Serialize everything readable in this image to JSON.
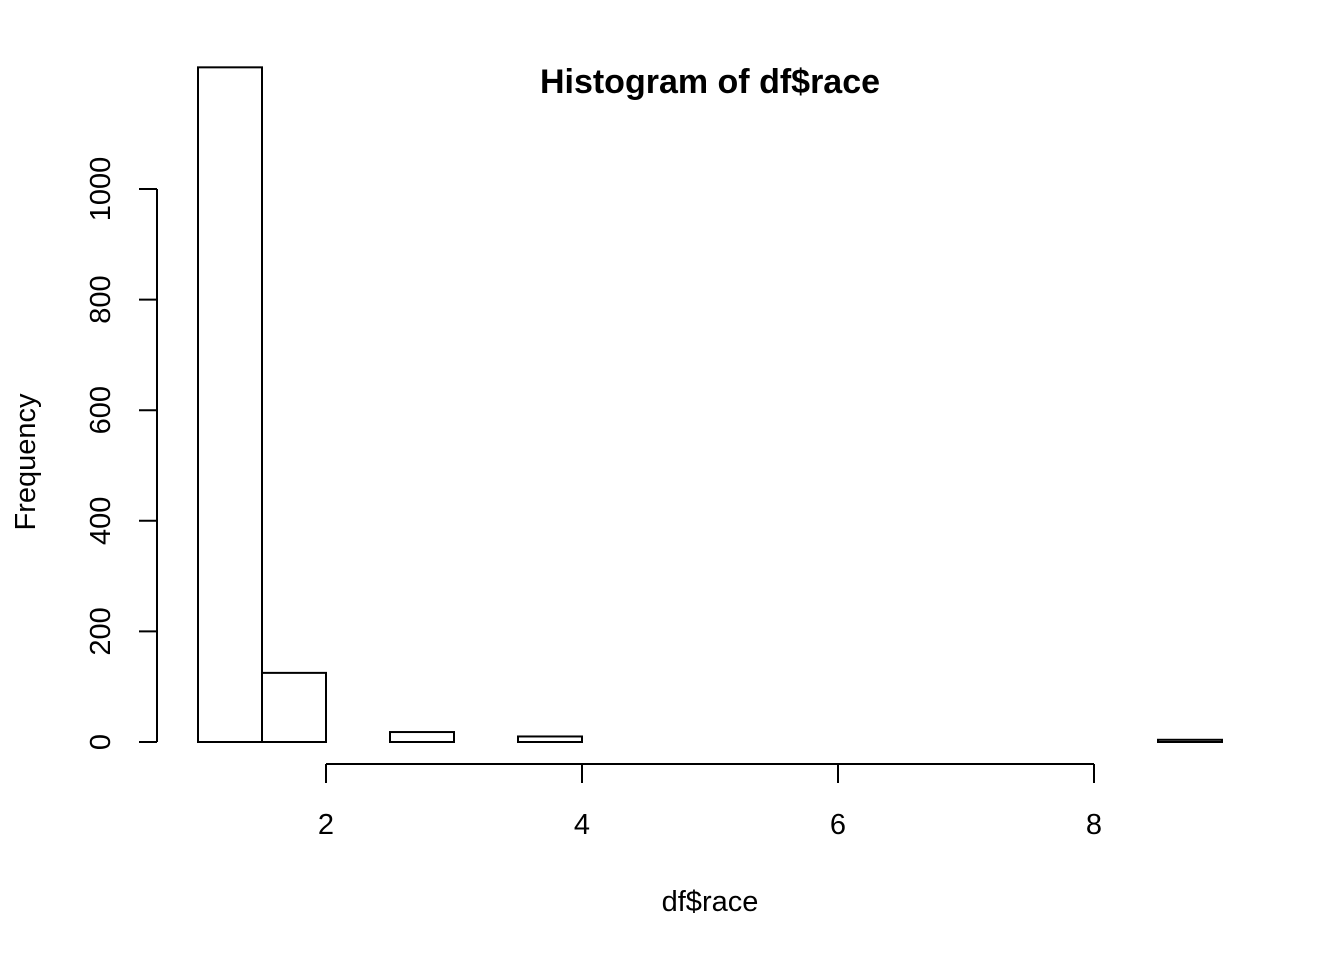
{
  "chart_data": {
    "type": "bar",
    "title": "Histogram of df$race",
    "xlabel": "df$race",
    "ylabel": "Frequency",
    "xlim": [
      1,
      9
    ],
    "ylim": [
      0,
      1200
    ],
    "x_ticks": [
      2,
      4,
      6,
      8
    ],
    "y_ticks": [
      0,
      200,
      400,
      600,
      800,
      1000
    ],
    "grid": false,
    "bins": [
      {
        "start": 1.0,
        "end": 1.5,
        "count": 1220
      },
      {
        "start": 1.5,
        "end": 2.0,
        "count": 125
      },
      {
        "start": 2.0,
        "end": 2.5,
        "count": 0
      },
      {
        "start": 2.5,
        "end": 3.0,
        "count": 18
      },
      {
        "start": 3.0,
        "end": 3.5,
        "count": 0
      },
      {
        "start": 3.5,
        "end": 4.0,
        "count": 10
      },
      {
        "start": 4.0,
        "end": 4.5,
        "count": 0
      },
      {
        "start": 4.5,
        "end": 5.0,
        "count": 0
      },
      {
        "start": 5.0,
        "end": 5.5,
        "count": 0
      },
      {
        "start": 5.5,
        "end": 6.0,
        "count": 0
      },
      {
        "start": 6.0,
        "end": 6.5,
        "count": 0
      },
      {
        "start": 6.5,
        "end": 7.0,
        "count": 0
      },
      {
        "start": 7.0,
        "end": 7.5,
        "count": 0
      },
      {
        "start": 7.5,
        "end": 8.0,
        "count": 0
      },
      {
        "start": 8.0,
        "end": 8.5,
        "count": 0
      },
      {
        "start": 8.5,
        "end": 9.0,
        "count": 4
      }
    ]
  }
}
